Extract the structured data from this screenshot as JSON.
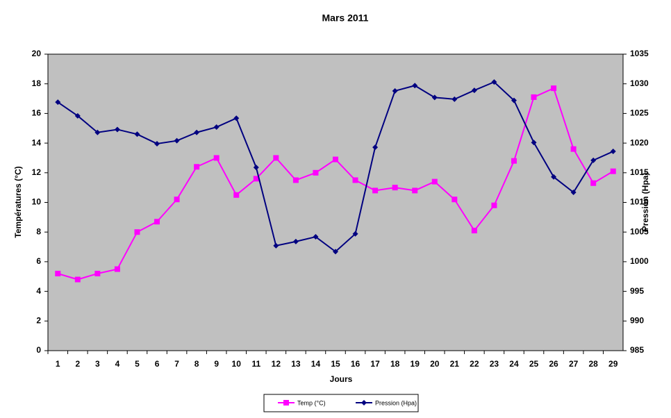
{
  "chart_data": {
    "type": "line",
    "title": "Mars 2011",
    "x_label": "Jours",
    "y_label": "Températures (°C)",
    "y2_label": "Pression (Hpa)",
    "categories": [
      "1",
      "2",
      "3",
      "4",
      "5",
      "6",
      "7",
      "8",
      "9",
      "10",
      "11",
      "12",
      "13",
      "14",
      "15",
      "16",
      "17",
      "18",
      "19",
      "20",
      "21",
      "22",
      "23",
      "24",
      "25",
      "26",
      "27",
      "28",
      "29"
    ],
    "series": [
      {
        "name": "Temp (°C)",
        "color": "#ff00ff",
        "marker": "square",
        "values": [
          5.2,
          4.8,
          5.2,
          5.5,
          8.0,
          8.7,
          10.2,
          12.4,
          13.0,
          10.5,
          11.6,
          13.0,
          11.5,
          12.0,
          12.9,
          11.5,
          10.8,
          11.0,
          10.8,
          11.4,
          10.2,
          8.1,
          9.8,
          12.8,
          17.1,
          17.7,
          13.6,
          11.3,
          12.1
        ]
      },
      {
        "name": "Pression (Hpa)",
        "color": "#000080",
        "marker": "diamond",
        "axis": "y2",
        "values": [
          1026.9,
          1024.6,
          1021.8,
          1022.3,
          1021.5,
          1019.9,
          1020.4,
          1021.8,
          1022.7,
          1024.2,
          1015.9,
          1002.7,
          1003.4,
          1004.2,
          1001.7,
          1004.7,
          1019.3,
          1028.8,
          1029.7,
          1027.7,
          1027.4,
          1028.9,
          1030.3,
          1027.2,
          1020.1,
          1014.3,
          1011.7,
          1017.1,
          1018.6
        ]
      }
    ],
    "ylim": [
      0,
      20
    ],
    "yticks": [
      0,
      2,
      4,
      6,
      8,
      10,
      12,
      14,
      16,
      18,
      20
    ],
    "y2lim": [
      985,
      1035
    ],
    "y2ticks": [
      985,
      990,
      995,
      1000,
      1005,
      1010,
      1015,
      1020,
      1025,
      1030,
      1035
    ],
    "plot_background": "#c0c0c0",
    "legend": "bottom"
  }
}
